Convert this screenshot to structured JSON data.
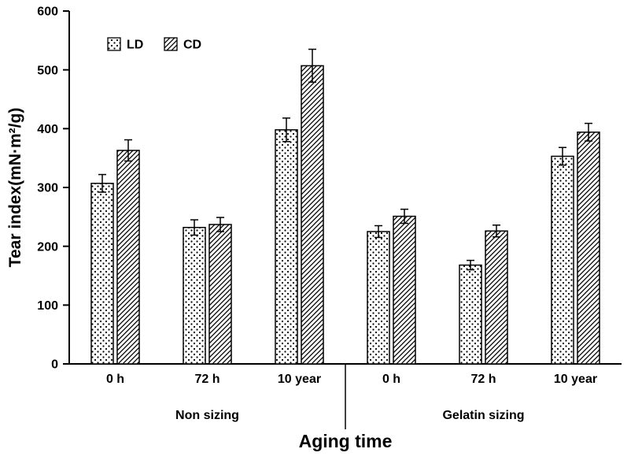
{
  "chart_data": {
    "type": "bar",
    "title": "",
    "xlabel": "Aging time",
    "ylabel": "Tear index(mN·m²/g)",
    "ylim": [
      0,
      600
    ],
    "ytick_step": 100,
    "ytick_labels": [
      "0",
      "100",
      "200",
      "300",
      "400",
      "500",
      "600"
    ],
    "grid": false,
    "legend_position": "top-left",
    "groups": [
      {
        "label": "Non sizing",
        "categories": [
          "0 h",
          "72 h",
          "10 year"
        ]
      },
      {
        "label": "Gelatin sizing",
        "categories": [
          "0 h",
          "72 h",
          "10 year"
        ]
      }
    ],
    "series": [
      {
        "name": "LD",
        "pattern": "dots",
        "values": [
          307,
          232,
          398,
          225,
          168,
          353
        ],
        "errors": [
          15,
          13,
          20,
          10,
          8,
          15
        ]
      },
      {
        "name": "CD",
        "pattern": "diagonal",
        "values": [
          363,
          237,
          507,
          251,
          226,
          394
        ],
        "errors": [
          18,
          12,
          28,
          12,
          10,
          15
        ]
      }
    ]
  },
  "colors": {
    "background": "#ffffff",
    "bar_fill": "#ffffff",
    "stroke": "#000000"
  }
}
